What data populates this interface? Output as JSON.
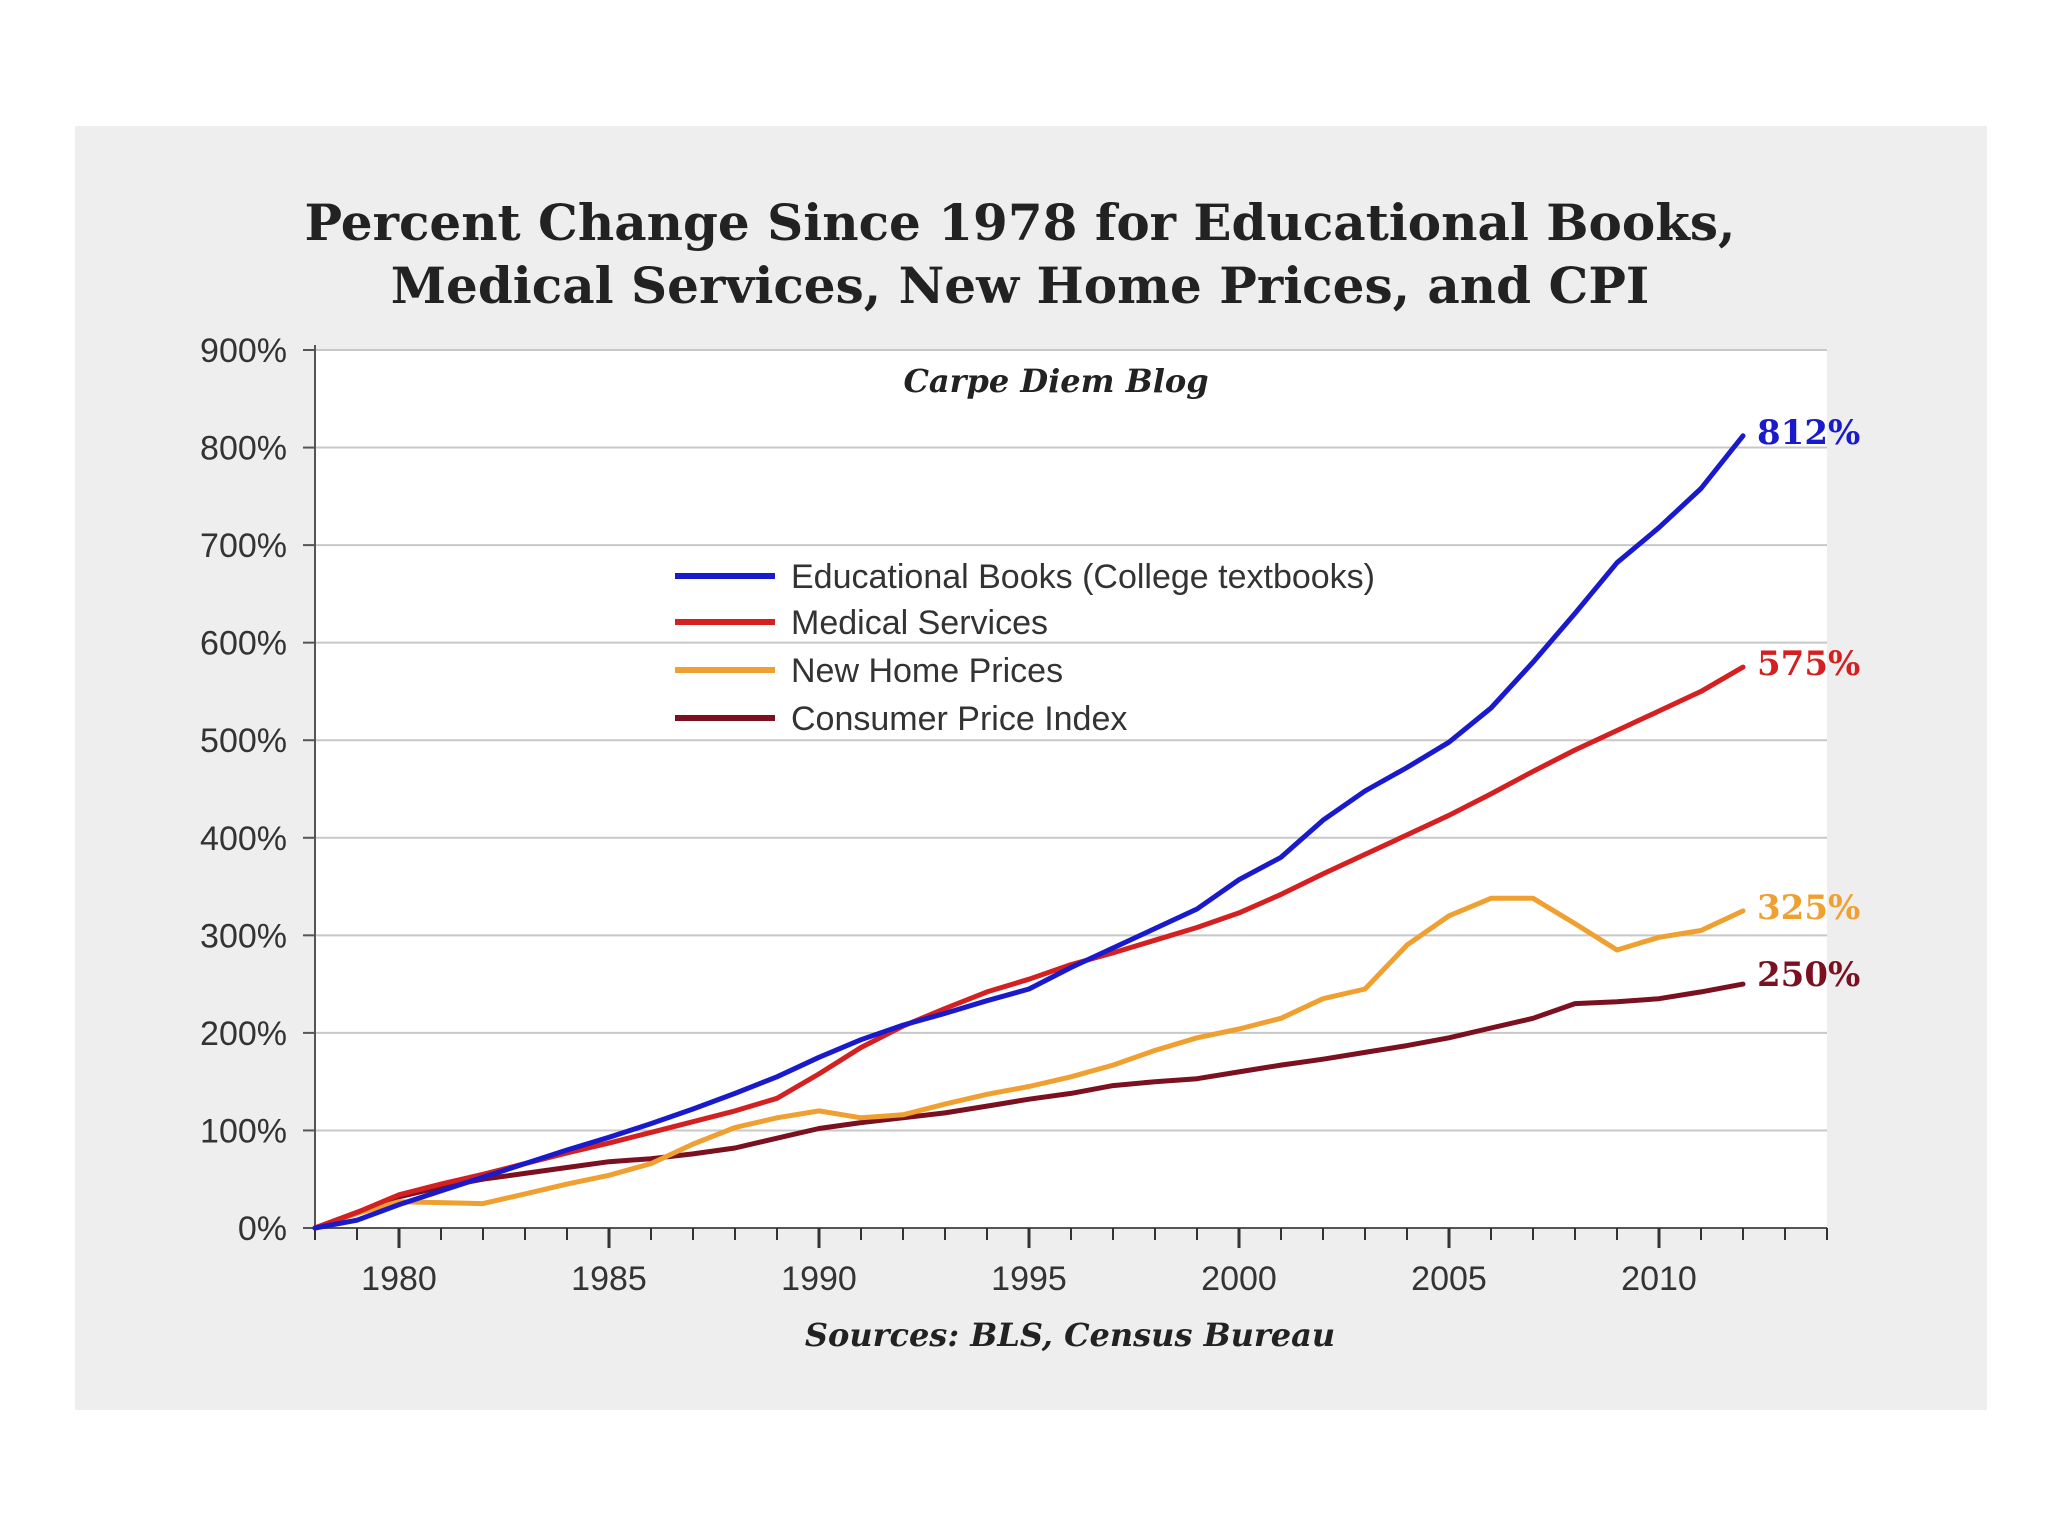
{
  "chart_data": {
    "type": "line",
    "title_line1": "Percent Change Since 1978 for Educational Books,",
    "title_line2": "Medical Services, New Home Prices, and CPI",
    "subtitle": "Carpe Diem Blog",
    "source": "Sources: BLS, Census Bureau",
    "xlabel": "",
    "ylabel": "",
    "xlim": [
      1978,
      2014
    ],
    "ylim": [
      0,
      900
    ],
    "x_ticks": [
      1980,
      1985,
      1990,
      1995,
      2000,
      2005,
      2010
    ],
    "y_ticks": [
      0,
      100,
      200,
      300,
      400,
      500,
      600,
      700,
      800,
      900
    ],
    "y_tick_labels": [
      "0%",
      "100%",
      "200%",
      "300%",
      "400%",
      "500%",
      "600%",
      "700%",
      "800%",
      "900%"
    ],
    "grid": true,
    "legend_position": "upper-center",
    "x": [
      1978,
      1979,
      1980,
      1981,
      1982,
      1983,
      1984,
      1985,
      1986,
      1987,
      1988,
      1989,
      1990,
      1991,
      1992,
      1993,
      1994,
      1995,
      1996,
      1997,
      1998,
      1999,
      2000,
      2001,
      2002,
      2003,
      2004,
      2005,
      2006,
      2007,
      2008,
      2009,
      2010,
      2011,
      2012
    ],
    "series": [
      {
        "name": "Educational Books  (College textbooks)",
        "color": "#1a1acd",
        "end_label": "812%",
        "values": [
          0,
          8,
          24,
          38,
          52,
          66,
          80,
          93,
          107,
          122,
          138,
          155,
          175,
          193,
          208,
          220,
          233,
          245,
          267,
          287,
          307,
          327,
          357,
          380,
          418,
          448,
          472,
          498,
          533,
          580,
          630,
          682,
          718,
          758,
          812
        ]
      },
      {
        "name": "Medical Services",
        "color": "#d42020",
        "end_label": "575%",
        "values": [
          0,
          16,
          34,
          45,
          55,
          66,
          77,
          87,
          98,
          109,
          120,
          133,
          158,
          185,
          207,
          225,
          242,
          255,
          270,
          282,
          295,
          308,
          323,
          342,
          363,
          383,
          403,
          423,
          445,
          468,
          490,
          510,
          530,
          550,
          575
        ]
      },
      {
        "name": "New Home Prices",
        "color": "#f0a030",
        "end_label": "325%",
        "values": [
          0,
          15,
          27,
          26,
          25,
          35,
          45,
          54,
          66,
          86,
          103,
          113,
          120,
          113,
          116,
          127,
          137,
          145,
          155,
          167,
          182,
          195,
          204,
          215,
          235,
          245,
          290,
          320,
          338,
          338,
          312,
          285,
          298,
          305,
          325
        ]
      },
      {
        "name": "Consumer Price Index",
        "color": "#7a1020",
        "end_label": "250%",
        "values": [
          0,
          16,
          32,
          42,
          50,
          56,
          62,
          68,
          71,
          76,
          82,
          92,
          102,
          108,
          113,
          118,
          125,
          132,
          138,
          146,
          150,
          153,
          160,
          167,
          173,
          180,
          187,
          195,
          205,
          215,
          230,
          232,
          235,
          242,
          250
        ]
      }
    ]
  }
}
